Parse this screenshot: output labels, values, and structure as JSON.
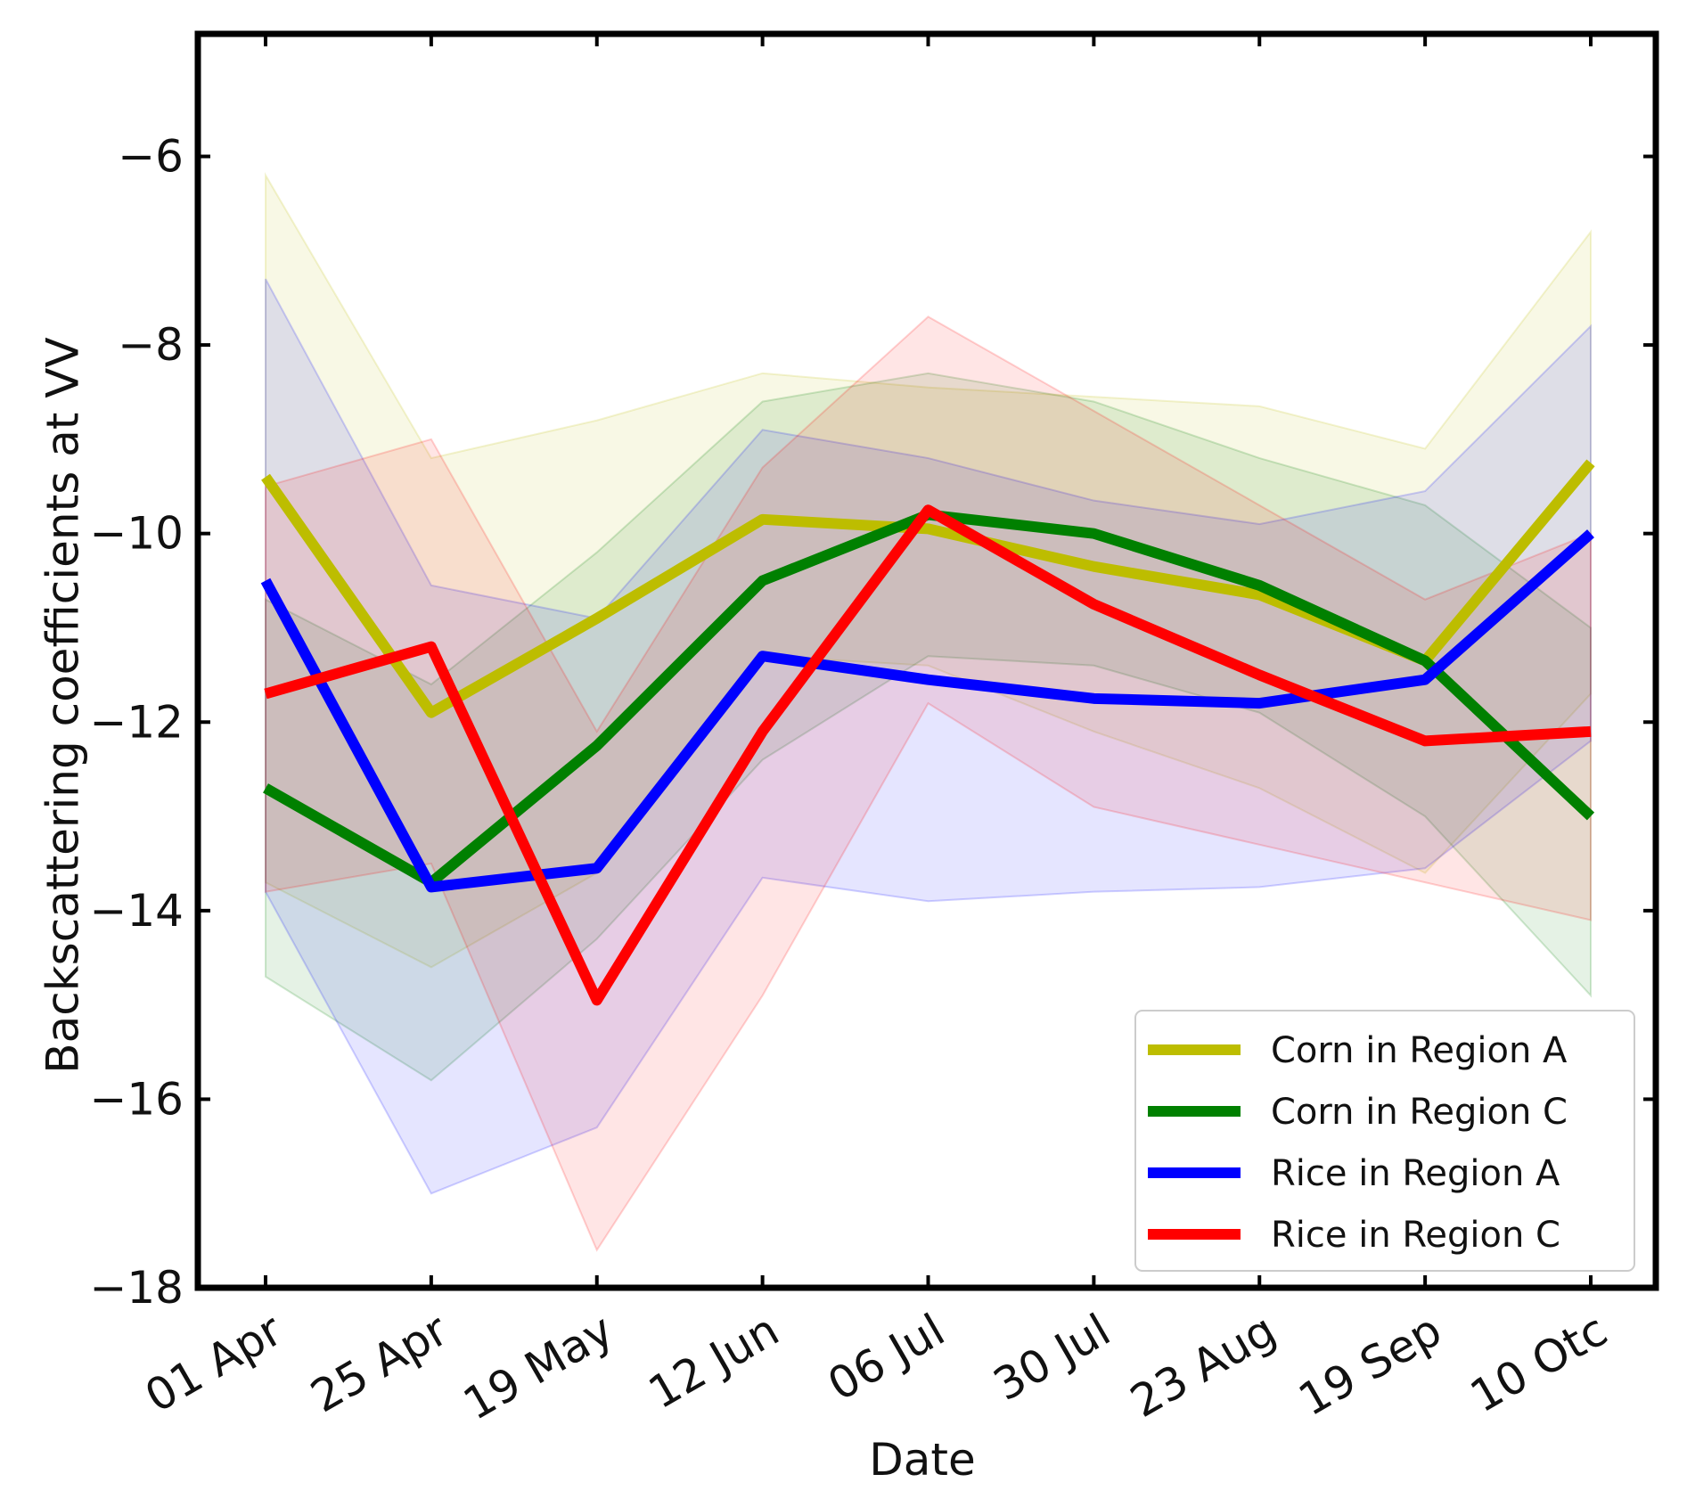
{
  "chart_data": {
    "type": "line",
    "title": "",
    "xlabel": "Date",
    "ylabel": "Backscattering coefficients at VV",
    "categories": [
      "01 Apr",
      "25 Apr",
      "19 May",
      "12 Jun",
      "06 Jul",
      "30 Jul",
      "23 Aug",
      "19 Sep",
      "10 Otc"
    ],
    "ylim": [
      -18,
      -4.7
    ],
    "yticks": [
      -18,
      -16,
      -14,
      -12,
      -10,
      -8,
      -6
    ],
    "ytick_labels": [
      "−18",
      "−16",
      "−14",
      "−12",
      "−10",
      "−8",
      "−6"
    ],
    "grid": false,
    "legend_position": "lower-right",
    "series": [
      {
        "name": "Corn in Region A",
        "color": "#bdbd00",
        "values": [
          -9.4,
          -11.9,
          -10.9,
          -9.85,
          -9.95,
          -10.35,
          -10.65,
          -11.35,
          -9.25
        ],
        "band_upper": [
          -6.2,
          -9.2,
          -8.8,
          -8.3,
          -8.45,
          -8.55,
          -8.65,
          -9.1,
          -6.8
        ],
        "band_lower": [
          -13.7,
          -14.6,
          -13.6,
          -11.3,
          -11.4,
          -12.1,
          -12.7,
          -13.6,
          -11.7
        ]
      },
      {
        "name": "Corn in Region C",
        "color": "#008000",
        "values": [
          -12.7,
          -13.7,
          -12.25,
          -10.5,
          -9.8,
          -10.0,
          -10.55,
          -11.35,
          -13.0
        ],
        "band_upper": [
          -10.7,
          -11.6,
          -10.2,
          -8.6,
          -8.3,
          -8.6,
          -9.2,
          -9.7,
          -11.0
        ],
        "band_lower": [
          -14.7,
          -15.8,
          -14.3,
          -12.4,
          -11.3,
          -11.4,
          -11.9,
          -13.0,
          -14.9
        ]
      },
      {
        "name": "Rice in Region A",
        "color": "#0000ff",
        "values": [
          -10.5,
          -13.75,
          -13.55,
          -11.3,
          -11.55,
          -11.75,
          -11.8,
          -11.55,
          -10.0
        ],
        "band_upper": [
          -7.3,
          -10.55,
          -10.9,
          -8.9,
          -9.2,
          -9.65,
          -9.9,
          -9.55,
          -7.8
        ],
        "band_lower": [
          -13.8,
          -17.0,
          -16.3,
          -13.65,
          -13.9,
          -13.8,
          -13.75,
          -13.55,
          -12.2
        ]
      },
      {
        "name": "Rice in Region C",
        "color": "#ff0000",
        "values": [
          -11.7,
          -11.2,
          -14.95,
          -12.1,
          -9.75,
          -10.75,
          -11.5,
          -12.2,
          -12.1
        ],
        "band_upper": [
          -9.5,
          -9.0,
          -12.1,
          -9.3,
          -7.7,
          -8.7,
          -9.7,
          -10.7,
          -10.0
        ],
        "band_lower": [
          -13.8,
          -13.5,
          -17.6,
          -14.9,
          -11.8,
          -12.9,
          -13.3,
          -13.7,
          -14.1
        ]
      }
    ]
  }
}
